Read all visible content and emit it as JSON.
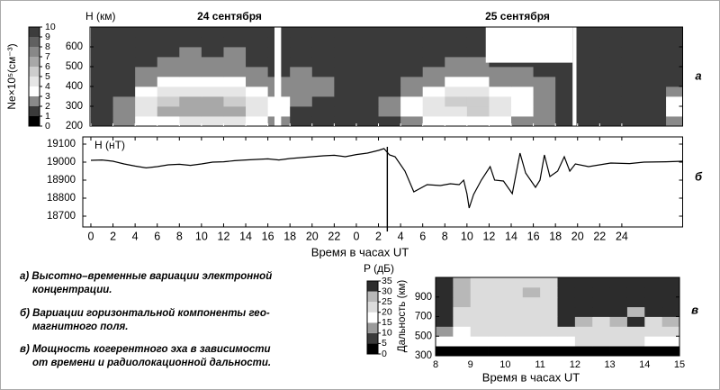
{
  "chart_data": [
    {
      "type": "heatmap",
      "label": "а",
      "titles": [
        "24 сентября",
        "25 сентября"
      ],
      "ylabel": "H (км)",
      "xlim": [
        -0.08,
        53.5
      ],
      "ylim": [
        200,
        700
      ],
      "yticks": [
        200,
        300,
        400,
        500,
        600
      ],
      "x_edges": [
        0,
        2,
        4,
        6,
        8,
        10,
        12,
        14,
        16,
        18,
        20,
        22,
        24,
        26,
        28,
        30,
        32,
        34,
        36,
        38,
        40,
        42,
        44,
        46,
        48,
        50,
        52,
        54
      ],
      "y_edges": [
        200,
        250,
        300,
        350,
        400,
        450,
        500,
        550,
        600,
        650,
        700
      ],
      "z": [
        [
          1,
          2,
          3,
          3,
          4,
          4,
          4,
          3,
          2,
          1,
          1,
          1,
          1,
          1,
          2,
          3,
          3,
          3,
          3,
          2,
          2,
          1,
          1,
          1,
          1,
          1,
          2
        ],
        [
          1,
          2,
          4,
          6,
          6,
          6,
          6,
          4,
          3,
          1,
          1,
          1,
          1,
          2,
          3,
          4,
          4,
          5,
          4,
          3,
          2,
          1,
          1,
          1,
          1,
          1,
          3
        ],
        [
          1,
          2,
          4,
          5,
          6,
          6,
          5,
          4,
          3,
          2,
          1,
          1,
          1,
          2,
          3,
          4,
          5,
          5,
          4,
          3,
          2,
          1,
          1,
          1,
          1,
          1,
          3
        ],
        [
          1,
          1,
          3,
          4,
          4,
          4,
          4,
          3,
          2,
          2,
          2,
          1,
          1,
          1,
          2,
          3,
          4,
          4,
          3,
          3,
          2,
          1,
          1,
          1,
          1,
          1,
          2
        ],
        [
          1,
          1,
          2,
          3,
          3,
          3,
          3,
          2,
          2,
          2,
          2,
          1,
          1,
          1,
          2,
          2,
          3,
          3,
          2,
          2,
          2,
          1,
          1,
          1,
          1,
          1,
          1
        ],
        [
          1,
          1,
          2,
          2,
          2,
          2,
          2,
          2,
          1,
          2,
          1,
          1,
          1,
          1,
          1,
          2,
          2,
          2,
          2,
          2,
          1,
          1,
          1,
          1,
          1,
          1,
          1
        ],
        [
          1,
          1,
          1,
          2,
          2,
          2,
          2,
          1,
          1,
          1,
          1,
          1,
          1,
          1,
          1,
          1,
          2,
          2,
          1,
          1,
          1,
          1,
          1,
          1,
          1,
          1,
          1
        ],
        [
          1,
          1,
          1,
          1,
          2,
          1,
          2,
          1,
          1,
          1,
          1,
          1,
          1,
          1,
          1,
          1,
          1,
          1,
          1,
          1,
          1,
          1,
          1,
          1,
          1,
          1,
          1
        ],
        [
          1,
          1,
          1,
          1,
          1,
          1,
          1,
          1,
          1,
          1,
          1,
          1,
          1,
          1,
          1,
          1,
          1,
          1,
          1,
          1,
          1,
          1,
          1,
          1,
          1,
          1,
          1
        ],
        [
          1,
          1,
          1,
          1,
          1,
          1,
          1,
          1,
          1,
          1,
          1,
          1,
          1,
          1,
          1,
          1,
          1,
          1,
          1,
          1,
          1,
          1,
          1,
          1,
          1,
          1,
          1
        ]
      ],
      "gaps": [
        [
          16.6,
          17.2
        ],
        [
          43.55,
          43.9
        ]
      ],
      "blank": {
        "x": [
          35.7,
          43.55
        ],
        "y": [
          520,
          700
        ]
      },
      "colorbar": {
        "label": "Ne×10⁵(см⁻³)",
        "ticks": [
          0,
          1,
          2,
          3,
          4,
          5,
          6,
          7,
          8,
          9,
          10
        ],
        "colors": [
          "#000000",
          "#3a3a3a",
          "#8a8a8a",
          "#ffffff",
          "#e6e6e6",
          "#cdcdcd",
          "#a8a8a8",
          "#888888",
          "#606060",
          "#3c3c3c"
        ]
      }
    },
    {
      "type": "line",
      "label": "б",
      "ylabel": "H (нТ)",
      "xlabel": "Время в часах UT",
      "color": "#000000",
      "xlim": [
        -0.73,
        53.5
      ],
      "ylim": [
        18640,
        19140
      ],
      "yticks": [
        18700,
        18800,
        18900,
        19000,
        19100
      ],
      "xticks": [
        0,
        2,
        4,
        6,
        8,
        10,
        12,
        14,
        16,
        18,
        20,
        22,
        {
          "value": 24,
          "label": "0"
        },
        {
          "value": 26,
          "label": "2"
        },
        {
          "value": 28,
          "label": "4"
        },
        {
          "value": 30,
          "label": "6"
        },
        {
          "value": 32,
          "label": "8"
        },
        {
          "value": 34,
          "label": "10"
        },
        {
          "value": 36,
          "label": "12"
        },
        {
          "value": 38,
          "label": "14"
        },
        {
          "value": 40,
          "label": "16"
        },
        {
          "value": 42,
          "label": "18"
        },
        {
          "value": 44,
          "label": "20"
        },
        {
          "value": 46,
          "label": "22"
        },
        {
          "value": 48,
          "label": "24"
        }
      ],
      "marker_x": 26.8,
      "x": [
        0,
        1,
        2,
        3,
        4,
        5,
        6,
        7,
        8,
        9,
        10,
        11,
        12,
        13,
        14,
        15,
        16,
        17,
        18,
        19,
        20,
        21,
        22,
        23,
        24,
        25,
        26,
        26.5,
        27,
        27.5,
        28.4,
        29.2,
        30.4,
        31.6,
        32.5,
        33.3,
        33.7,
        34,
        34.2,
        34.6,
        35.3,
        36.1,
        36.5,
        37.3,
        38.1,
        38.8,
        39.3,
        40.2,
        40.6,
        41,
        41.5,
        42.2,
        42.8,
        43.3,
        43.8,
        45,
        47,
        48.7,
        50,
        52,
        53.5
      ],
      "values": [
        19010,
        19012,
        19005,
        18990,
        18978,
        18968,
        18975,
        18985,
        18988,
        18982,
        18990,
        19000,
        19002,
        19008,
        19012,
        19015,
        19018,
        19012,
        19020,
        19025,
        19030,
        19035,
        19038,
        19030,
        19042,
        19050,
        19065,
        19075,
        19040,
        19030,
        18950,
        18835,
        18875,
        18870,
        18880,
        18875,
        18900,
        18825,
        18745,
        18820,
        18900,
        18975,
        18900,
        18895,
        18825,
        19050,
        18940,
        18860,
        18900,
        19040,
        18920,
        18950,
        19030,
        18950,
        18990,
        18975,
        18995,
        18992,
        19000,
        19002,
        19005
      ]
    },
    {
      "type": "heatmap",
      "label": "в",
      "ylabel": "Дальность (км)",
      "xlabel": "Время в часах UT",
      "xlim": [
        8,
        15
      ],
      "xticks": [
        8,
        9,
        10,
        11,
        12,
        13,
        14,
        15
      ],
      "ylim": [
        300,
        1100
      ],
      "yticks": [
        300,
        500,
        700,
        900
      ],
      "x_edges": [
        8,
        8.5,
        9,
        9.5,
        10,
        10.5,
        11,
        11.5,
        12,
        12.5,
        13,
        13.5,
        14,
        14.5,
        15
      ],
      "y_edges": [
        300,
        400,
        500,
        600,
        700,
        800,
        900,
        1000,
        1100
      ],
      "z": [
        [
          2,
          2,
          2,
          2,
          2,
          2,
          2,
          2,
          2,
          2,
          2,
          2,
          2,
          2
        ],
        [
          17,
          17,
          18,
          18,
          18,
          18,
          18,
          18,
          20,
          20,
          20,
          20,
          18,
          18
        ],
        [
          12,
          18,
          20,
          20,
          20,
          20,
          20,
          22,
          20,
          20,
          20,
          20,
          20,
          20
        ],
        [
          33,
          20,
          22,
          22,
          22,
          22,
          20,
          33,
          28,
          22,
          28,
          30,
          22,
          28
        ],
        [
          33,
          22,
          22,
          22,
          22,
          22,
          22,
          33,
          33,
          30,
          33,
          28,
          30,
          33
        ],
        [
          33,
          25,
          22,
          22,
          22,
          22,
          22,
          33,
          33,
          33,
          30,
          33,
          33,
          33
        ],
        [
          30,
          25,
          22,
          22,
          22,
          25,
          22,
          33,
          33,
          33,
          33,
          33,
          33,
          33
        ],
        [
          30,
          25,
          22,
          22,
          22,
          22,
          22,
          33,
          33,
          33,
          33,
          33,
          33,
          33
        ]
      ],
      "colorbar": {
        "label": "P (дБ)",
        "ticks": [
          0,
          5,
          10,
          15,
          20,
          25,
          30,
          35
        ],
        "colors": [
          "#000000",
          "#3a3a3a",
          "#9a9a9a",
          "#ffffff",
          "#dcdcdc",
          "#b8b8b8",
          "#2c2c2c"
        ]
      }
    }
  ],
  "notes": [
    [
      "а) Высотно–временные вариации электронной",
      "концентрации."
    ],
    [
      "б) Вариации горизонтальной компоненты гео-",
      "магнитного поля."
    ],
    [
      "в) Мощность когерентного эха в зависимости",
      "от времени и радиолокационной дальности."
    ]
  ]
}
